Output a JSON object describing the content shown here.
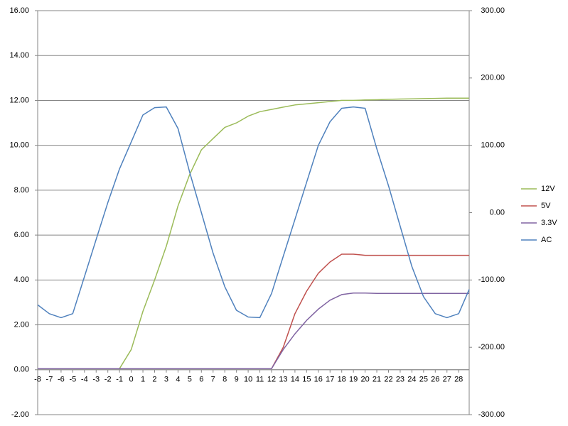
{
  "chart_data": {
    "type": "line",
    "x": [
      -8,
      -7,
      -6,
      -5,
      -4,
      -3,
      -2,
      -1,
      0,
      1,
      2,
      3,
      4,
      5,
      6,
      7,
      8,
      9,
      10,
      11,
      12,
      13,
      14,
      15,
      16,
      17,
      18,
      19,
      20,
      21,
      22,
      23,
      24,
      25,
      26,
      27,
      28,
      28.9
    ],
    "series": [
      {
        "name": "12V",
        "color": "#9bbb59",
        "values": [
          0.05,
          0.05,
          0.05,
          0.05,
          0.05,
          0.05,
          0.05,
          0.05,
          0.9,
          2.6,
          4.0,
          5.5,
          7.3,
          8.7,
          9.8,
          10.3,
          10.8,
          11.0,
          11.3,
          11.5,
          11.6,
          11.7,
          11.8,
          11.85,
          11.9,
          11.95,
          12.0,
          12.0,
          12.02,
          12.03,
          12.05,
          12.06,
          12.07,
          12.08,
          12.09,
          12.1,
          12.1,
          12.1
        ]
      },
      {
        "name": "5V",
        "color": "#c0504d",
        "values": [
          0.05,
          0.05,
          0.05,
          0.05,
          0.05,
          0.05,
          0.05,
          0.05,
          0.05,
          0.05,
          0.05,
          0.05,
          0.05,
          0.05,
          0.05,
          0.05,
          0.05,
          0.05,
          0.05,
          0.05,
          0.05,
          1.0,
          2.5,
          3.5,
          4.3,
          4.8,
          5.15,
          5.15,
          5.1,
          5.1,
          5.1,
          5.1,
          5.1,
          5.1,
          5.1,
          5.1,
          5.1,
          5.1
        ]
      },
      {
        "name": "3.3V",
        "color": "#8064a2",
        "values": [
          0.05,
          0.05,
          0.05,
          0.05,
          0.05,
          0.05,
          0.05,
          0.05,
          0.05,
          0.05,
          0.05,
          0.05,
          0.05,
          0.05,
          0.05,
          0.05,
          0.05,
          0.05,
          0.05,
          0.05,
          0.05,
          0.9,
          1.6,
          2.2,
          2.7,
          3.1,
          3.35,
          3.42,
          3.42,
          3.4,
          3.4,
          3.4,
          3.4,
          3.4,
          3.4,
          3.4,
          3.4,
          3.4
        ]
      },
      {
        "name": "AC",
        "color": "#4f81bd",
        "axis": "y2",
        "values": [
          -137,
          -150,
          -156,
          -150,
          -95,
          -40,
          15,
          65,
          105,
          145,
          156,
          157,
          125,
          60,
          0,
          -60,
          -110,
          -145,
          -155,
          -156,
          -120,
          -65,
          -10,
          45,
          100,
          135,
          155,
          157,
          155,
          95,
          40,
          -20,
          -80,
          -125,
          -150,
          -156,
          -150,
          -114
        ]
      }
    ],
    "xlim": [
      -8,
      28.9
    ],
    "xticks": [
      -8,
      -7,
      -6,
      -5,
      -4,
      -3,
      -2,
      -1,
      0,
      1,
      2,
      3,
      4,
      5,
      6,
      7,
      8,
      9,
      10,
      11,
      12,
      13,
      14,
      15,
      16,
      17,
      18,
      19,
      20,
      21,
      22,
      23,
      24,
      25,
      26,
      27,
      28
    ],
    "ylim": [
      -2,
      16
    ],
    "yticks": [
      {
        "value": -2,
        "label": "-2.00"
      },
      {
        "value": 0,
        "label": "0.00"
      },
      {
        "value": 2,
        "label": "2.00"
      },
      {
        "value": 4,
        "label": "4.00"
      },
      {
        "value": 6,
        "label": "6.00"
      },
      {
        "value": 8,
        "label": "8.00"
      },
      {
        "value": 10,
        "label": "10.00"
      },
      {
        "value": 12,
        "label": "12.00"
      },
      {
        "value": 14,
        "label": "14.00"
      },
      {
        "value": 16,
        "label": "16.00"
      }
    ],
    "y2lim": [
      -300,
      300
    ],
    "y2ticks": [
      {
        "value": -300,
        "label": "-300.00"
      },
      {
        "value": -200,
        "label": "-200.00"
      },
      {
        "value": -100,
        "label": "-100.00"
      },
      {
        "value": 0,
        "label": "0.00"
      },
      {
        "value": 100,
        "label": "100.00"
      },
      {
        "value": 200,
        "label": "200.00"
      },
      {
        "value": 300,
        "label": "300.00"
      }
    ],
    "grid": true,
    "legend": "right"
  }
}
